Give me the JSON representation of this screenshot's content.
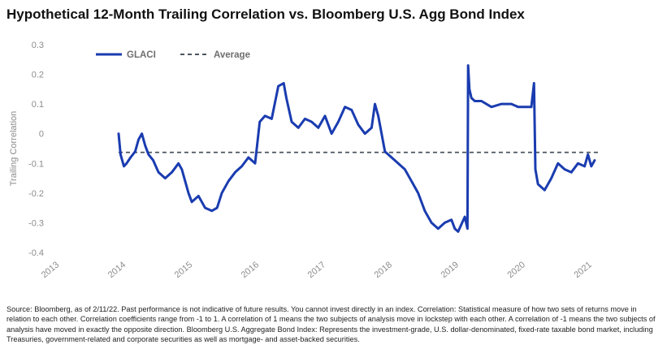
{
  "title": "Hypothetical 12-Month Trailing Correlation vs. Bloomberg U.S. Agg Bond Index",
  "source": "Source: Bloomberg, as of 2/11/22. Past performance is not indicative of future results. You cannot invest directly in an index. Correlation: Statistical measure of how two sets of returns move in relation to each other. Correlation coefficients range from -1 to 1. A correlation of 1 means the two subjects of analysis move in lockstep with each other. A correlation of -1 means the two subjects of analysis have moved in exactly the opposite direction. Bloomberg U.S. Aggregate Bond Index: Represents the investment-grade, U.S. dollar-denominated, fixed-rate taxable bond market, including Treasuries, government-related and corporate securities as well as mortgage- and asset-backed securities.",
  "colors": {
    "glaci": "#1a3cb0",
    "average": "#4a5560",
    "tick": "#8c8c8c"
  },
  "chart_data": {
    "type": "line",
    "ylabel": "Trailing Correlation",
    "ylim": [
      -0.4,
      0.3
    ],
    "yticks": [
      "0.3",
      "0.2",
      "0.1",
      "0",
      "-0.1",
      "-0.2",
      "-0.3",
      "-0.4"
    ],
    "xlim": [
      2013,
      2021.2
    ],
    "xticks": [
      "2013",
      "2014",
      "2015",
      "2016",
      "2017",
      "2018",
      "2019",
      "2020",
      "2021"
    ],
    "legend_position": "top-left",
    "series": [
      {
        "name": "GLACI",
        "x": [
          2014.0,
          2014.03,
          2014.08,
          2014.12,
          2014.18,
          2014.25,
          2014.3,
          2014.35,
          2014.4,
          2014.45,
          2014.52,
          2014.6,
          2014.7,
          2014.8,
          2014.9,
          2014.95,
          2015.0,
          2015.05,
          2015.1,
          2015.2,
          2015.3,
          2015.4,
          2015.48,
          2015.55,
          2015.65,
          2015.75,
          2015.85,
          2015.95,
          2016.05,
          2016.12,
          2016.2,
          2016.3,
          2016.4,
          2016.48,
          2016.52,
          2016.6,
          2016.7,
          2016.8,
          2016.9,
          2017.0,
          2017.1,
          2017.2,
          2017.3,
          2017.4,
          2017.5,
          2017.6,
          2017.7,
          2017.8,
          2017.85,
          2017.9,
          2018.0,
          2018.1,
          2018.2,
          2018.3,
          2018.4,
          2018.5,
          2018.6,
          2018.7,
          2018.8,
          2018.9,
          2019.0,
          2019.05,
          2019.1,
          2019.2,
          2019.24,
          2019.25,
          2019.27,
          2019.3,
          2019.35,
          2019.45,
          2019.6,
          2019.75,
          2019.9,
          2020.0,
          2020.1,
          2020.2,
          2020.24,
          2020.26,
          2020.3,
          2020.4,
          2020.5,
          2020.6,
          2020.7,
          2020.8,
          2020.9,
          2021.0,
          2021.05,
          2021.1,
          2021.15
        ],
        "values": [
          0.0,
          -0.07,
          -0.11,
          -0.1,
          -0.08,
          -0.06,
          -0.02,
          0.0,
          -0.04,
          -0.07,
          -0.09,
          -0.13,
          -0.15,
          -0.13,
          -0.1,
          -0.12,
          -0.16,
          -0.2,
          -0.23,
          -0.21,
          -0.25,
          -0.26,
          -0.25,
          -0.2,
          -0.16,
          -0.13,
          -0.11,
          -0.08,
          -0.1,
          0.04,
          0.06,
          0.05,
          0.16,
          0.17,
          0.12,
          0.04,
          0.02,
          0.05,
          0.04,
          0.02,
          0.06,
          0.0,
          0.04,
          0.09,
          0.08,
          0.03,
          0.0,
          0.02,
          0.1,
          0.06,
          -0.06,
          -0.08,
          -0.1,
          -0.12,
          -0.16,
          -0.2,
          -0.26,
          -0.3,
          -0.32,
          -0.3,
          -0.29,
          -0.32,
          -0.33,
          -0.28,
          -0.32,
          0.23,
          0.15,
          0.12,
          0.11,
          0.11,
          0.09,
          0.1,
          0.1,
          0.09,
          0.09,
          0.09,
          0.17,
          -0.12,
          -0.17,
          -0.19,
          -0.15,
          -0.1,
          -0.12,
          -0.13,
          -0.1,
          -0.11,
          -0.07,
          -0.11,
          -0.09
        ]
      },
      {
        "name": "Average",
        "style": "dashed",
        "value": -0.063
      }
    ]
  }
}
